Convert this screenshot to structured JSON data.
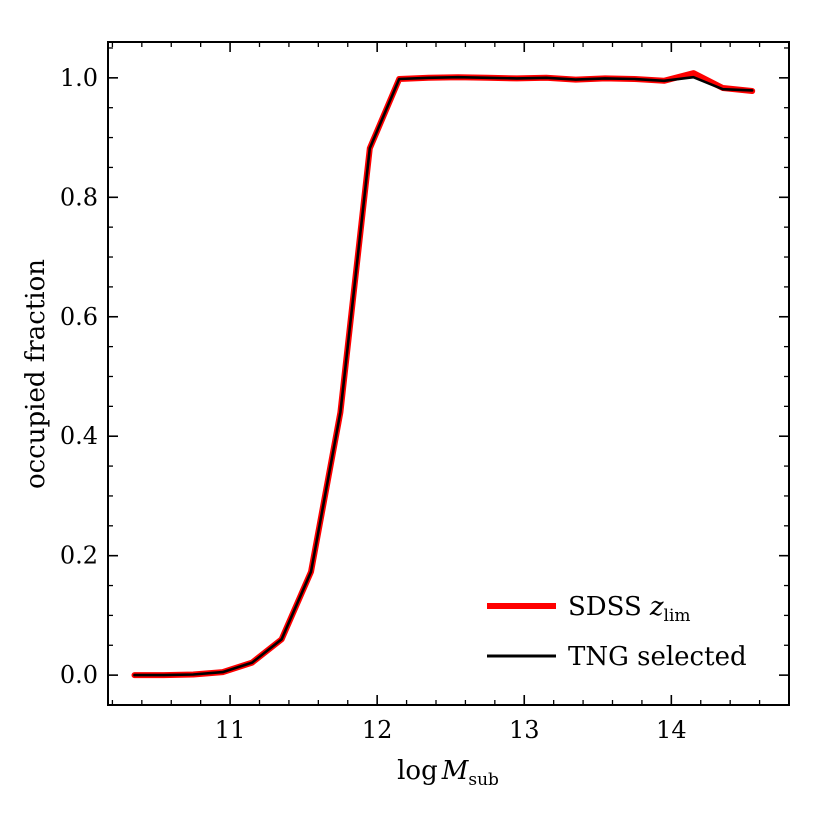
{
  "chart_data": {
    "type": "line",
    "title": "",
    "xlabel": "log",
    "xlabel_symbol": "M",
    "xlabel_sub": "sub",
    "ylabel": "occupied fraction",
    "xlim": [
      10.17,
      14.8
    ],
    "ylim": [
      -0.05,
      1.06
    ],
    "xticks": [
      11,
      12,
      13,
      14
    ],
    "xtick_labels": [
      "11",
      "12",
      "13",
      "14"
    ],
    "yticks": [
      0.0,
      0.2,
      0.4,
      0.6,
      0.8,
      1.0
    ],
    "ytick_labels": [
      "0.0",
      "0.2",
      "0.4",
      "0.6",
      "0.8",
      "1.0"
    ],
    "x_minor_step": 0.2,
    "y_minor_step": 0.05,
    "grid": false,
    "legend_position": "lower-right",
    "x": [
      10.35,
      10.55,
      10.75,
      10.95,
      11.15,
      11.35,
      11.55,
      11.75,
      11.95,
      12.15,
      12.35,
      12.55,
      12.75,
      12.95,
      13.15,
      13.35,
      13.55,
      13.75,
      13.95,
      14.15,
      14.35,
      14.55
    ],
    "series": [
      {
        "name": "SDSS",
        "legend_symbol": "z",
        "legend_sub": "lim",
        "color": "#ff0000",
        "values": [
          0.0,
          0.0,
          0.001,
          0.005,
          0.021,
          0.06,
          0.173,
          0.44,
          0.882,
          0.998,
          1.0,
          1.001,
          1.0,
          0.999,
          1.0,
          0.997,
          0.999,
          0.998,
          0.995,
          1.008,
          0.983,
          0.978
        ]
      },
      {
        "name": "TNG selected",
        "legend_symbol": "",
        "legend_sub": "",
        "color": "#000000",
        "values": [
          0.0,
          0.0,
          0.001,
          0.005,
          0.021,
          0.06,
          0.173,
          0.44,
          0.882,
          0.998,
          1.0,
          1.001,
          1.0,
          0.999,
          1.0,
          0.997,
          0.999,
          0.998,
          0.995,
          1.001,
          0.981,
          0.979
        ]
      }
    ]
  }
}
